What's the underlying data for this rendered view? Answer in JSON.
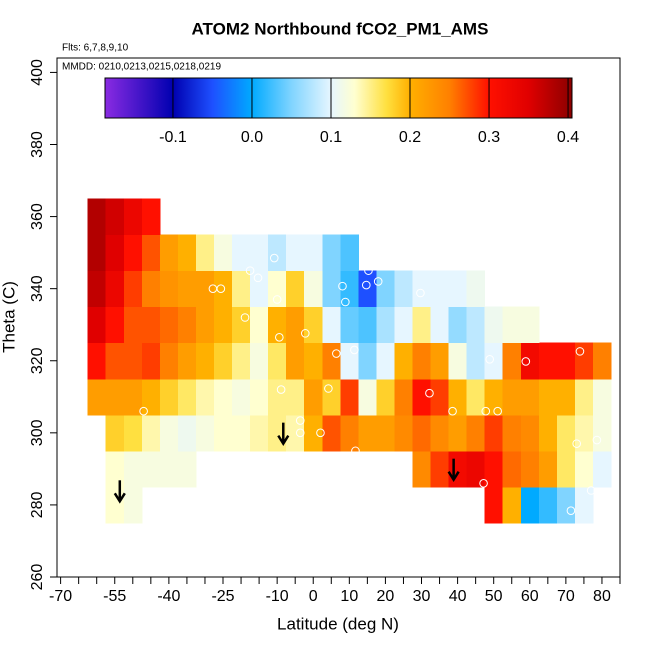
{
  "chart_data": {
    "type": "heatmap",
    "title": "ATOM2 Northbound fCO2_PM1_AMS",
    "subtitle": "Flts: 6,7,8,9,10",
    "annotation": "MMDD: 0210,0213,0215,0218,0219",
    "x_label": "Latitude (deg N)",
    "y_label": "Theta (C)",
    "xlim": [
      -71,
      85
    ],
    "ylim": [
      260,
      404
    ],
    "xticks": [
      -70,
      -55,
      -40,
      -25,
      -10,
      0,
      10,
      20,
      30,
      40,
      50,
      60,
      70,
      80
    ],
    "xminorticks": [
      -65,
      -60,
      -50,
      -45,
      -35,
      -30,
      -20,
      -15,
      -5,
      5,
      15,
      25,
      35,
      45,
      55,
      65,
      75,
      85
    ],
    "yticks": [
      260,
      280,
      300,
      320,
      340,
      360,
      380,
      400
    ],
    "clim": [
      -0.186,
      0.405
    ],
    "cticks": [
      -0.1,
      {
        "value": 0,
        "label": "0.0"
      },
      0.1,
      0.2,
      0.3,
      0.4
    ],
    "colormap": [
      {
        "value": -0.186,
        "color": "#8a2be2"
      },
      {
        "value": -0.1,
        "color": "#0000b0"
      },
      {
        "value": -0.05,
        "color": "#1e50ff"
      },
      {
        "value": 0,
        "color": "#00aaff"
      },
      {
        "value": 0.05,
        "color": "#80d4ff"
      },
      {
        "value": 0.1,
        "color": "#e6f6ff"
      },
      {
        "value": 0.13,
        "color": "#ffffd0"
      },
      {
        "value": 0.17,
        "color": "#ffe040"
      },
      {
        "value": 0.2,
        "color": "#ffb000"
      },
      {
        "value": 0.25,
        "color": "#ff8000"
      },
      {
        "value": 0.3,
        "color": "#ff1000"
      },
      {
        "value": 0.35,
        "color": "#e00000"
      },
      {
        "value": 0.405,
        "color": "#8b0000"
      }
    ],
    "lat": [
      -60,
      -55,
      -50,
      -45,
      -40,
      -35,
      -30,
      -25,
      -20,
      -15,
      -10,
      -5,
      0,
      5,
      10,
      15,
      20,
      25,
      30,
      35,
      40,
      45,
      50,
      55,
      60,
      65,
      70,
      75,
      80
    ],
    "theta": [
      280,
      290,
      300,
      310,
      320,
      330,
      340,
      350,
      360
    ],
    "z": [
      [
        null,
        0.13,
        0.12,
        null,
        null,
        null,
        null,
        null,
        null,
        null,
        null,
        null,
        null,
        null,
        null,
        null,
        null,
        null,
        null,
        null,
        null,
        null,
        0.3,
        0.2,
        0.0,
        0.02,
        0.05,
        0.1,
        null
      ],
      [
        null,
        0.13,
        0.12,
        0.12,
        0.12,
        0.12,
        null,
        null,
        null,
        null,
        null,
        null,
        null,
        null,
        null,
        null,
        null,
        null,
        0.24,
        0.28,
        0.32,
        0.33,
        0.3,
        0.26,
        0.25,
        0.22,
        0.16,
        0.13,
        0.1
      ],
      [
        null,
        0.18,
        0.17,
        0.14,
        0.12,
        0.11,
        0.12,
        0.13,
        0.13,
        0.14,
        0.15,
        0.14,
        0.2,
        0.27,
        0.25,
        0.22,
        0.22,
        0.24,
        0.26,
        0.24,
        0.22,
        0.25,
        0.28,
        0.25,
        0.24,
        0.2,
        0.16,
        0.14,
        0.12
      ],
      [
        0.22,
        0.22,
        0.22,
        0.2,
        0.18,
        0.16,
        0.14,
        0.13,
        0.12,
        0.13,
        0.15,
        0.15,
        0.22,
        0.18,
        0.28,
        0.12,
        0.18,
        0.25,
        0.3,
        0.28,
        0.2,
        0.16,
        0.2,
        0.22,
        0.22,
        0.2,
        0.2,
        0.15,
        0.12
      ],
      [
        0.3,
        0.27,
        0.27,
        0.28,
        0.25,
        0.22,
        0.2,
        0.18,
        0.15,
        0.12,
        0.16,
        0.22,
        0.2,
        0.25,
        0.1,
        0.05,
        0.1,
        0.2,
        0.25,
        0.22,
        0.12,
        0.08,
        0.1,
        0.25,
        0.32,
        0.3,
        0.3,
        0.28,
        0.25
      ],
      [
        0.35,
        0.3,
        0.27,
        0.27,
        0.26,
        0.25,
        0.22,
        0.2,
        0.18,
        0.13,
        0.2,
        0.22,
        0.18,
        0.1,
        0.04,
        0.03,
        0.07,
        0.1,
        0.15,
        0.1,
        0.06,
        0.08,
        0.11,
        0.12,
        0.12,
        null,
        null,
        null,
        null
      ],
      [
        0.37,
        0.33,
        0.28,
        0.25,
        0.23,
        0.22,
        0.22,
        0.2,
        0.15,
        0.1,
        0.13,
        0.18,
        0.12,
        0.05,
        0.02,
        -0.05,
        0.05,
        0.08,
        0.1,
        0.1,
        0.1,
        0.11,
        null,
        null,
        null,
        null,
        null,
        null,
        null
      ],
      [
        0.38,
        0.35,
        0.3,
        0.27,
        0.22,
        0.2,
        0.15,
        0.12,
        0.1,
        0.1,
        0.08,
        0.1,
        0.1,
        0.05,
        0.03,
        null,
        null,
        null,
        null,
        null,
        null,
        null,
        null,
        null,
        null,
        null,
        null,
        null,
        null
      ],
      [
        0.38,
        0.36,
        0.33,
        0.3,
        null,
        null,
        null,
        null,
        null,
        null,
        null,
        null,
        null,
        null,
        null,
        null,
        null,
        null,
        null,
        null,
        null,
        null,
        null,
        null,
        null,
        null,
        null,
        null,
        null
      ]
    ],
    "points": {
      "lat": [
        -47,
        -27.8,
        -25.6,
        -18.9,
        -17.5,
        -15.3,
        -10.8,
        -10,
        -9.4,
        -8.9,
        -2.2,
        -3.6,
        -3.6,
        2,
        4.2,
        6.4,
        8.9,
        8.1,
        11.4,
        11.7,
        14.7,
        15.3,
        18,
        29.7,
        32.2,
        38.6,
        47.8,
        51.1,
        48.9,
        58.9,
        73.9,
        73,
        78.6,
        77,
        71.4,
        47.2
      ],
      "theta": [
        306,
        340,
        340,
        332,
        345,
        343,
        348.5,
        337,
        326.5,
        312,
        327.6,
        303.4,
        300,
        300,
        312.3,
        322,
        336.3,
        340.7,
        323,
        295,
        341,
        345,
        342,
        338.8,
        311,
        306,
        306,
        306,
        320.4,
        319.8,
        322.6,
        297,
        298,
        284,
        278.4,
        286
      ]
    },
    "arrows": {
      "lat": [
        -53.6,
        -8.3,
        38.9
      ],
      "theta": [
        281,
        297,
        287
      ]
    }
  }
}
